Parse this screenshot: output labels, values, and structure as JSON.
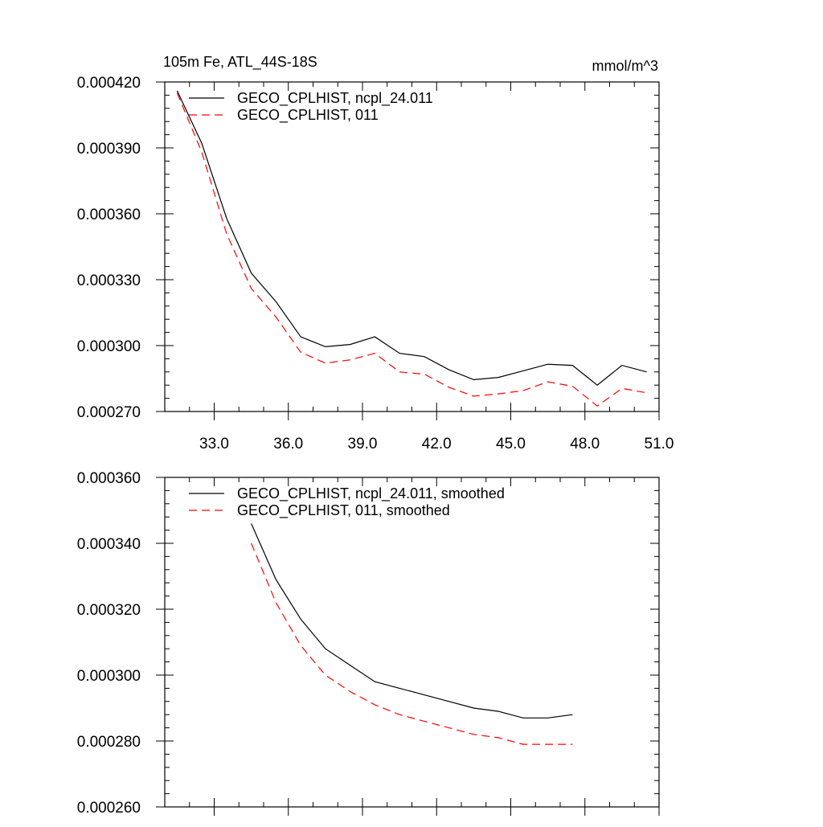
{
  "chart_data": [
    {
      "type": "line",
      "title": "105m Fe, ATL_44S-18S",
      "units": "mmol/m^3",
      "xlabel": "",
      "ylabel": "",
      "xlim": [
        31.0,
        51.0
      ],
      "ylim": [
        0.00027,
        0.00042
      ],
      "xticks": [
        "33.0",
        "36.0",
        "39.0",
        "42.0",
        "45.0",
        "48.0",
        "51.0"
      ],
      "yticks": [
        "0.000270",
        "0.000300",
        "0.000330",
        "0.000360",
        "0.000390",
        "0.000420"
      ],
      "x": [
        31.5,
        32.5,
        33.5,
        34.5,
        35.5,
        36.5,
        37.5,
        38.5,
        39.5,
        40.5,
        41.5,
        42.5,
        43.5,
        44.5,
        45.5,
        46.5,
        47.5,
        48.5,
        49.5,
        50.5
      ],
      "series": [
        {
          "name": "GECO_CPLHIST, ncpl_24.011",
          "color": "#000000",
          "dash": "solid",
          "values": [
            0.000416,
            0.000392,
            0.000358,
            0.000333,
            0.00032,
            0.000304,
            0.0002995,
            0.0003005,
            0.000304,
            0.0002965,
            0.000295,
            0.000289,
            0.0002845,
            0.0002855,
            0.0002885,
            0.0002915,
            0.000291,
            0.000282,
            0.000291,
            0.000288
          ]
        },
        {
          "name": "GECO_CPLHIST, 011",
          "color": "#ff0000",
          "dash": "dashed",
          "values": [
            0.000415,
            0.000388,
            0.000351,
            0.000326,
            0.000313,
            0.000297,
            0.000292,
            0.0002935,
            0.0002965,
            0.000288,
            0.000287,
            0.000281,
            0.000277,
            0.000278,
            0.0002795,
            0.0002835,
            0.0002815,
            0.0002725,
            0.0002805,
            0.0002785
          ]
        }
      ],
      "legend": "top-left",
      "grid": false
    },
    {
      "type": "line",
      "title": "",
      "xlabel": "",
      "ylabel": "",
      "xlim": [
        31.0,
        51.0
      ],
      "ylim": [
        0.00026,
        0.00036
      ],
      "yticks": [
        "0.000260",
        "0.000280",
        "0.000300",
        "0.000320",
        "0.000340",
        "0.000360"
      ],
      "x": [
        34.5,
        35.5,
        36.5,
        37.5,
        38.5,
        39.5,
        40.5,
        41.5,
        42.5,
        43.5,
        44.5,
        45.5,
        46.5,
        47.5
      ],
      "series": [
        {
          "name": "GECO_CPLHIST, ncpl_24.011, smoothed",
          "color": "#000000",
          "dash": "solid",
          "values": [
            0.000346,
            0.000329,
            0.000317,
            0.000308,
            0.000303,
            0.000298,
            0.000296,
            0.000294,
            0.000292,
            0.00029,
            0.000289,
            0.000287,
            0.000287,
            0.000288
          ]
        },
        {
          "name": "GECO_CPLHIST, 011, smoothed",
          "color": "#ff0000",
          "dash": "dashed",
          "values": [
            0.00034,
            0.000322,
            0.000309,
            0.0003,
            0.000295,
            0.000291,
            0.000288,
            0.000286,
            0.000284,
            0.000282,
            0.000281,
            0.000279,
            0.000279,
            0.000279
          ]
        }
      ],
      "legend": "top-left",
      "grid": false
    }
  ]
}
